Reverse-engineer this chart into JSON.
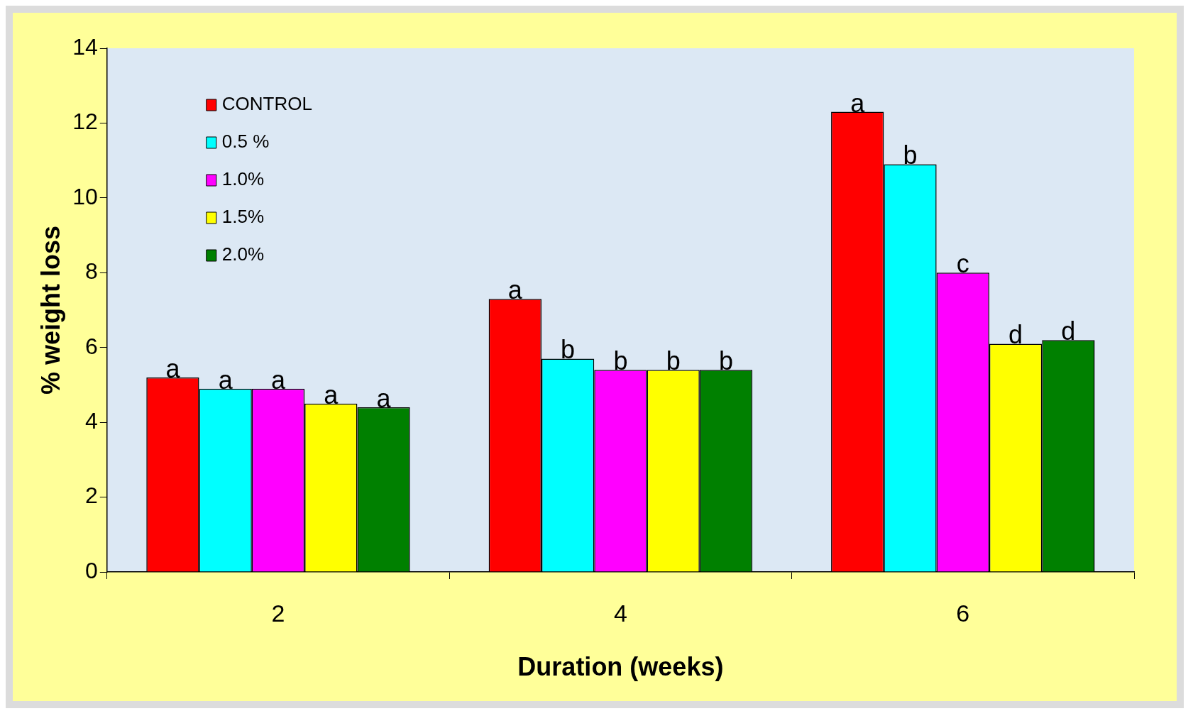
{
  "chart_data": {
    "type": "bar",
    "xlabel": "Duration (weeks)",
    "ylabel": "% weight loss",
    "categories": [
      "2",
      "4",
      "6"
    ],
    "series": [
      {
        "name": "CONTROL",
        "color": "#ff0000",
        "values": [
          5.2,
          7.3,
          12.3
        ],
        "value_labels": [
          "a",
          "a",
          "a"
        ]
      },
      {
        "name": "0.5 %",
        "color": "#00ffff",
        "values": [
          4.9,
          5.7,
          10.9
        ],
        "value_labels": [
          "a",
          "b",
          "b"
        ]
      },
      {
        "name": "1.0%",
        "color": "#ff00ff",
        "values": [
          4.9,
          5.4,
          8.0
        ],
        "value_labels": [
          "a",
          "b",
          "c"
        ]
      },
      {
        "name": "1.5%",
        "color": "#ffff00",
        "values": [
          4.5,
          5.4,
          6.1
        ],
        "value_labels": [
          "a",
          "b",
          "d"
        ]
      },
      {
        "name": "2.0%",
        "color": "#008000",
        "values": [
          4.4,
          5.4,
          6.2
        ],
        "value_labels": [
          "a",
          "b",
          "d"
        ]
      }
    ],
    "ylim": [
      0,
      14
    ],
    "yticks": [
      0,
      2,
      4,
      6,
      8,
      10,
      12,
      14
    ],
    "grid": false,
    "legend": "top left"
  }
}
